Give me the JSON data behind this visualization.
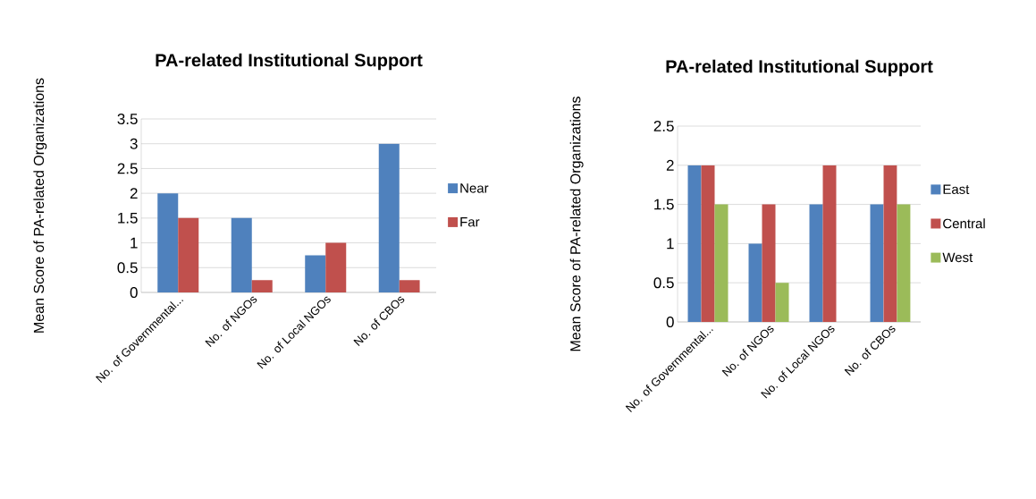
{
  "chart_data": [
    {
      "type": "bar",
      "title": "PA-related Institutional Support",
      "ylabel": "Mean Score of PA-related Organizations",
      "categories": [
        "No. of Governmental...",
        "No. of NGOs",
        "No. of Local NGOs",
        "No. of CBOs"
      ],
      "series": [
        {
          "name": "Near",
          "color": "#4f81bd",
          "values": [
            2,
            1.5,
            0.75,
            3
          ]
        },
        {
          "name": "Far",
          "color": "#c0504d",
          "values": [
            1.5,
            0.25,
            1,
            0.25
          ]
        }
      ],
      "ylim": [
        0,
        3.5
      ],
      "yticks": [
        0,
        0.5,
        1,
        1.5,
        2,
        2.5,
        3,
        3.5
      ],
      "grid": "y",
      "legend": "right"
    },
    {
      "type": "bar",
      "title": "PA-related Institutional Support",
      "ylabel": "Mean Score of PA-related Organizations",
      "categories": [
        "No. of Governmental...",
        "No. of NGOs",
        "No. of Local NGOs",
        "No. of CBOs"
      ],
      "series": [
        {
          "name": "East",
          "color": "#4f81bd",
          "values": [
            2,
            1,
            1.5,
            1.5
          ]
        },
        {
          "name": "Central",
          "color": "#c0504d",
          "values": [
            2,
            1.5,
            2,
            2
          ]
        },
        {
          "name": "West",
          "color": "#9bbb59",
          "values": [
            1.5,
            0.5,
            null,
            1.5
          ]
        }
      ],
      "ylim": [
        0,
        2.5
      ],
      "yticks": [
        0,
        0.5,
        1,
        1.5,
        2,
        2.5
      ],
      "grid": "y",
      "legend": "right"
    }
  ]
}
